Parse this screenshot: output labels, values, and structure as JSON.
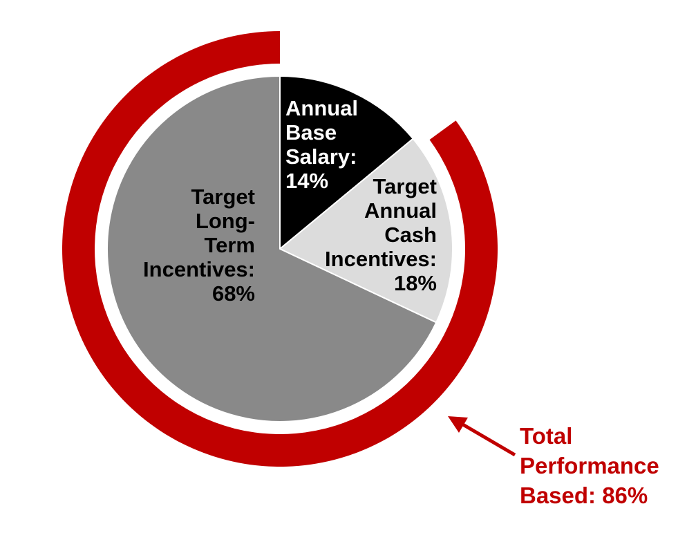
{
  "chart_data": {
    "type": "pie",
    "slices": [
      {
        "label": [
          "Annual",
          "Base",
          "Salary:",
          "14%"
        ],
        "value": 14,
        "color": "#000000",
        "text_color": "#ffffff"
      },
      {
        "label": [
          "Target",
          "Annual",
          "Cash",
          "Incentives:",
          "18%"
        ],
        "value": 18,
        "color": "#dcdcdc",
        "text_color": "#000000"
      },
      {
        "label": [
          "Target",
          "Long-",
          "Term",
          "Incentives:",
          "68%"
        ],
        "value": 68,
        "color": "#898989",
        "text_color": "#000000"
      }
    ],
    "performance_ring": {
      "covers": [
        "Target Annual Cash Incentives",
        "Target Long-Term Incentives"
      ],
      "value": 86,
      "color": "#c00000",
      "label": [
        "Total",
        "Performance",
        "Based: 86%"
      ]
    }
  }
}
